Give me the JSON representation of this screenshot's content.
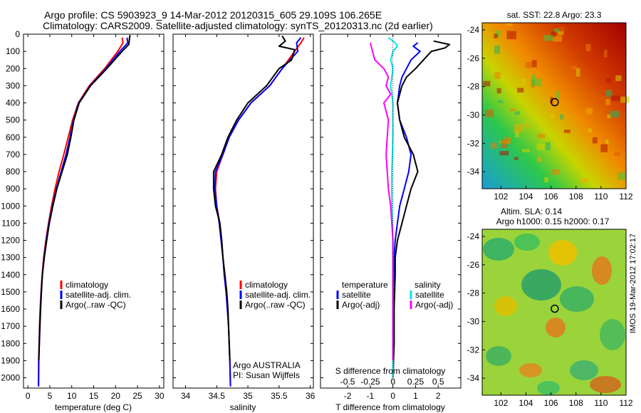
{
  "header": {
    "line1": "Argo profile: CS 5903923_9 14-Mar-2012 20120315_605 29.109S 106.265E",
    "line2": "Climatology: CARS2009. Satellite-adjusted climatology: synTS_20120313.nc (2d earlier)"
  },
  "colors": {
    "climatology": "#ff0000",
    "satellite": "#0000ff",
    "argo": "#000000",
    "sat_salinity": "#00e5ee",
    "argo_salinity": "#ff00ff"
  },
  "depth_ticks": [
    "0",
    "100",
    "200",
    "300",
    "400",
    "500",
    "600",
    "700",
    "800",
    "900",
    "1000",
    "1100",
    "1200",
    "1300",
    "1400",
    "1500",
    "1600",
    "1700",
    "1800",
    "1900",
    "2000"
  ],
  "chart_data": [
    {
      "type": "line",
      "name": "temperature",
      "xlabel": "temperature (deg C)",
      "xticks": [
        "0",
        "5",
        "10",
        "15",
        "20",
        "25",
        "30"
      ],
      "xlim": [
        -1,
        31
      ],
      "ylim": [
        2060,
        0
      ],
      "legend": [
        "climatology",
        "satellite-adj. clim.",
        "Argo(..raw -QC)"
      ],
      "series": [
        {
          "name": "climatology",
          "color": "#ff0000",
          "x": [
            21.5,
            21.7,
            20.5,
            17.5,
            14.0,
            11.5,
            10.2,
            9.2,
            8.2,
            7.1,
            6.2,
            5.4,
            4.7,
            4.1,
            3.6,
            3.25,
            3.0,
            2.8,
            2.65,
            2.55,
            2.45,
            2.4
          ],
          "y": [
            20,
            50,
            100,
            200,
            300,
            400,
            500,
            600,
            700,
            800,
            900,
            1000,
            1100,
            1200,
            1300,
            1400,
            1500,
            1600,
            1700,
            1800,
            1900,
            2050
          ]
        },
        {
          "name": "satellite-adj. clim.",
          "color": "#0000ff",
          "x": [
            22.6,
            22.8,
            21.0,
            17.8,
            14.2,
            11.6,
            10.4,
            9.6,
            8.7,
            7.6,
            6.5,
            5.6,
            4.8,
            4.2,
            3.7,
            3.3,
            3.05,
            2.85,
            2.7,
            2.6,
            2.5,
            2.45
          ],
          "y": [
            20,
            50,
            100,
            200,
            300,
            400,
            500,
            600,
            700,
            800,
            900,
            1000,
            1100,
            1200,
            1300,
            1400,
            1500,
            1600,
            1700,
            1800,
            1900,
            2050
          ]
        },
        {
          "name": "Argo(..raw -QC)",
          "color": "#000000",
          "x": [
            23.3,
            23.2,
            23.1,
            23.0,
            21.5,
            18.0,
            14.3,
            11.7,
            10.5,
            9.8,
            9.0,
            7.8,
            6.6,
            5.7,
            4.9,
            4.3,
            3.75,
            3.3,
            3.1,
            2.9,
            2.75,
            2.6,
            2.5
          ],
          "y": [
            5,
            20,
            40,
            60,
            100,
            200,
            300,
            400,
            500,
            600,
            700,
            800,
            900,
            1000,
            1100,
            1200,
            1300,
            1400,
            1500,
            1600,
            1700,
            1800,
            1900
          ]
        }
      ]
    },
    {
      "type": "line",
      "name": "salinity",
      "xlabel": "salinity",
      "xticks": [
        "34",
        "34.5",
        "35",
        "35.5",
        "36"
      ],
      "xlim": [
        33.8,
        36.05
      ],
      "ylim": [
        2060,
        0
      ],
      "legend": [
        "climatology",
        "satellite-adj. clim.",
        "Argo(..raw -QC)"
      ],
      "annotation": [
        "Argo AUSTRALIA",
        "PI: Susan Wijffels"
      ],
      "series": [
        {
          "name": "climatology",
          "color": "#ff0000",
          "x": [
            35.9,
            35.85,
            35.75,
            35.55,
            35.35,
            35.05,
            34.85,
            34.7,
            34.6,
            34.5,
            34.48,
            34.5,
            34.55,
            34.58,
            34.6,
            34.63,
            34.66,
            34.68,
            34.69,
            34.7,
            34.71,
            34.72
          ],
          "y": [
            20,
            50,
            100,
            200,
            300,
            400,
            500,
            600,
            700,
            800,
            900,
            1000,
            1100,
            1200,
            1300,
            1400,
            1500,
            1600,
            1700,
            1800,
            1900,
            2050
          ]
        },
        {
          "name": "satellite-adj. clim.",
          "color": "#0000ff",
          "x": [
            35.85,
            35.78,
            35.8,
            35.55,
            35.35,
            35.05,
            34.85,
            34.7,
            34.6,
            34.48,
            34.47,
            34.5,
            34.54,
            34.57,
            34.6,
            34.62,
            34.65,
            34.67,
            34.69,
            34.7,
            34.71,
            34.72
          ],
          "y": [
            20,
            50,
            100,
            200,
            300,
            400,
            500,
            600,
            700,
            800,
            900,
            1000,
            1100,
            1200,
            1300,
            1400,
            1500,
            1600,
            1700,
            1800,
            1900,
            2050
          ]
        },
        {
          "name": "Argo(..raw -QC)",
          "color": "#000000",
          "x": [
            35.55,
            35.6,
            35.5,
            35.75,
            35.7,
            35.5,
            35.3,
            35.0,
            34.82,
            34.68,
            34.58,
            34.45,
            34.45,
            34.48,
            34.55,
            34.58,
            34.6,
            34.63,
            34.66,
            34.68,
            34.69,
            34.7,
            34.71
          ],
          "y": [
            10,
            40,
            70,
            90,
            150,
            200,
            300,
            400,
            500,
            600,
            700,
            800,
            900,
            1000,
            1100,
            1200,
            1300,
            1400,
            1500,
            1600,
            1700,
            1800,
            1900
          ]
        }
      ]
    },
    {
      "type": "line",
      "name": "difference",
      "xlabel_top": "S difference from climatology",
      "xlabel": "T difference from climatology",
      "xticks_T": [
        "-2",
        "-1",
        "0",
        "1",
        "2"
      ],
      "xticks_S": [
        "-0.5",
        "-0.25",
        "0",
        "0.25",
        "0.5"
      ],
      "xlim": [
        -3.2,
        3.0
      ],
      "ylim": [
        2060,
        0
      ],
      "legend_temperature": {
        "title": "temperature",
        "items": [
          "satellite",
          "Argo(-adj)"
        ]
      },
      "legend_salinity": {
        "title": "salinity",
        "items": [
          "satellite",
          "Argo(-adj)"
        ]
      },
      "series": [
        {
          "name": "temperature satellite",
          "color": "#0000ff",
          "x": [
            1.1,
            0.9,
            1.2,
            0.8,
            0.6,
            0.4,
            0.3,
            0.2,
            0.3,
            0.6,
            0.8,
            0.7,
            0.5,
            0.3,
            0.2,
            0.1,
            0.05,
            0.05,
            0.05,
            0.05,
            0.0
          ],
          "y": [
            50,
            70,
            100,
            150,
            200,
            250,
            300,
            400,
            500,
            600,
            700,
            800,
            900,
            1000,
            1100,
            1200,
            1300,
            1400,
            1600,
            1800,
            2000
          ]
        },
        {
          "name": "temperature Argo(-adj)",
          "color": "#000000",
          "x": [
            1.8,
            2.5,
            2.3,
            1.7,
            1.0,
            0.6,
            0.4,
            0.2,
            0.3,
            0.5,
            0.9,
            1.1,
            0.8,
            0.6,
            0.4,
            0.2,
            0.1,
            0.1,
            0.05,
            0.05,
            0.0
          ],
          "y": [
            40,
            60,
            80,
            100,
            200,
            250,
            300,
            400,
            500,
            600,
            700,
            800,
            900,
            1000,
            1100,
            1200,
            1300,
            1400,
            1600,
            1800,
            2000
          ]
        },
        {
          "name": "salinity satellite",
          "color": "#00e5ee",
          "x": [
            -0.2,
            0.1,
            0.2,
            0.0,
            -0.1,
            0.0,
            -0.1,
            0.0,
            0.0,
            -0.05,
            -0.05,
            0.0,
            0.0,
            0.0,
            0.0
          ],
          "y": [
            20,
            50,
            70,
            100,
            150,
            200,
            300,
            400,
            600,
            800,
            1000,
            1200,
            1500,
            1800,
            2000
          ]
        },
        {
          "name": "salinity Argo(-adj)",
          "color": "#ff00ff",
          "x": [
            -1.0,
            -0.8,
            -0.4,
            -0.2,
            -0.3,
            -0.1,
            -0.4,
            -0.2,
            -0.3,
            -0.2,
            -0.1,
            0.0,
            0.0,
            0.0
          ],
          "y": [
            50,
            150,
            200,
            250,
            300,
            350,
            400,
            500,
            700,
            900,
            1000,
            1200,
            1500,
            1900
          ]
        }
      ]
    }
  ],
  "maps": [
    {
      "title": "sat. SST: 22.8 Argo: 23.3",
      "xticks": [
        "102",
        "104",
        "106",
        "108",
        "110",
        "112"
      ],
      "yticks": [
        "-24",
        "-26",
        "-28",
        "-30",
        "-32",
        "-34"
      ],
      "marker_lon": 106.3,
      "marker_lat": -29.1
    },
    {
      "title1": "Altim. SLA: 0.14",
      "title2": "Argo h1000: 0.15 h2000: 0.17",
      "xticks": [
        "102",
        "104",
        "106",
        "108",
        "110",
        "112"
      ],
      "yticks": [
        "-24",
        "-26",
        "-28",
        "-30",
        "-32",
        "-34"
      ],
      "marker_lon": 106.3,
      "marker_lat": -29.1
    }
  ],
  "side_label": "IMOS 19-Mar-2012 17:02:17"
}
